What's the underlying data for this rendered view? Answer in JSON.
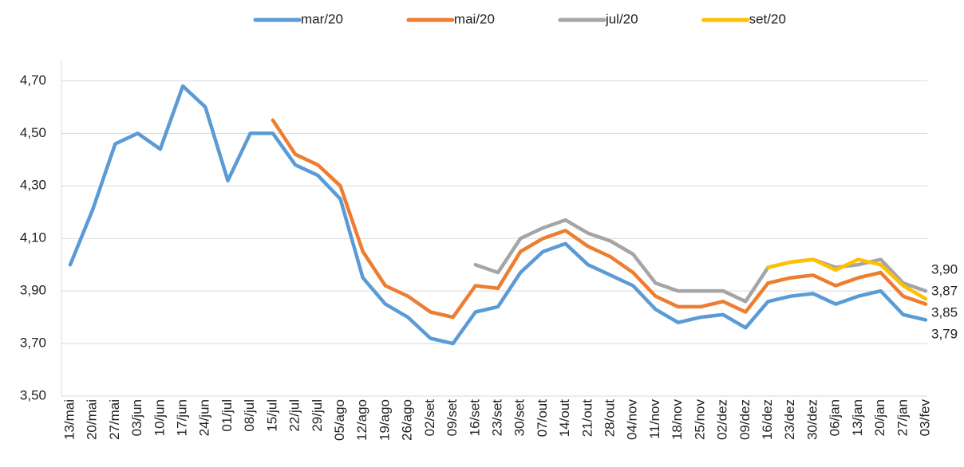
{
  "chart_data": {
    "type": "line",
    "categories": [
      "13/mai",
      "20/mai",
      "27/mai",
      "03/jun",
      "10/jun",
      "17/jun",
      "24/jun",
      "01/jul",
      "08/jul",
      "15/jul",
      "22/jul",
      "29/jul",
      "05/ago",
      "12/ago",
      "19/ago",
      "26/ago",
      "02/set",
      "09/set",
      "16/set",
      "23/set",
      "30/set",
      "07/out",
      "14/out",
      "21/out",
      "28/out",
      "04/nov",
      "11/nov",
      "18/nov",
      "25/nov",
      "02/dez",
      "09/dez",
      "16/dez",
      "23/dez",
      "30/dez",
      "06/jan",
      "13/jan",
      "20/jan",
      "27/jan",
      "03/fev"
    ],
    "series": [
      {
        "name": "mar/20",
        "color": "#5b9bd5",
        "values": [
          4.0,
          4.21,
          4.46,
          4.5,
          4.44,
          4.68,
          4.6,
          4.32,
          4.5,
          4.5,
          4.38,
          4.34,
          4.25,
          3.95,
          3.85,
          3.8,
          3.72,
          3.7,
          3.82,
          3.84,
          3.97,
          4.05,
          4.08,
          4.0,
          3.96,
          3.92,
          3.83,
          3.78,
          3.8,
          3.81,
          3.76,
          3.86,
          3.88,
          3.89,
          3.85,
          3.88,
          3.9,
          3.81,
          3.79
        ],
        "value_labels": [
          null,
          null,
          null,
          null,
          null,
          null,
          null,
          null,
          null,
          null,
          null,
          null,
          null,
          null,
          null,
          null,
          null,
          null,
          null,
          null,
          null,
          null,
          null,
          null,
          null,
          null,
          null,
          null,
          null,
          null,
          null,
          null,
          null,
          null,
          null,
          null,
          null,
          null,
          "3,79"
        ]
      },
      {
        "name": "mai/20",
        "color": "#ed7d31",
        "values": [
          null,
          null,
          null,
          null,
          null,
          null,
          null,
          null,
          null,
          4.55,
          4.42,
          4.38,
          4.3,
          4.05,
          3.92,
          3.88,
          3.82,
          3.8,
          3.92,
          3.91,
          4.05,
          4.1,
          4.13,
          4.07,
          4.03,
          3.97,
          3.88,
          3.84,
          3.84,
          3.86,
          3.82,
          3.93,
          3.95,
          3.96,
          3.92,
          3.95,
          3.97,
          3.88,
          3.85
        ],
        "value_labels": [
          null,
          null,
          null,
          null,
          null,
          null,
          null,
          null,
          null,
          null,
          null,
          null,
          null,
          null,
          null,
          null,
          null,
          null,
          null,
          null,
          null,
          null,
          null,
          null,
          null,
          null,
          null,
          null,
          null,
          null,
          null,
          null,
          null,
          null,
          null,
          null,
          null,
          null,
          "3,85"
        ]
      },
      {
        "name": "jul/20",
        "color": "#a5a5a5",
        "values": [
          null,
          null,
          null,
          null,
          null,
          null,
          null,
          null,
          null,
          null,
          null,
          null,
          null,
          null,
          null,
          null,
          null,
          null,
          4.0,
          3.97,
          4.1,
          4.14,
          4.17,
          4.12,
          4.09,
          4.04,
          3.93,
          3.9,
          3.9,
          3.9,
          3.86,
          3.99,
          4.01,
          4.02,
          3.99,
          4.0,
          4.02,
          3.93,
          3.9
        ],
        "value_labels": [
          null,
          null,
          null,
          null,
          null,
          null,
          null,
          null,
          null,
          null,
          null,
          null,
          null,
          null,
          null,
          null,
          null,
          null,
          null,
          null,
          null,
          null,
          null,
          null,
          null,
          null,
          null,
          null,
          null,
          null,
          null,
          null,
          null,
          null,
          null,
          null,
          null,
          null,
          "3,90"
        ]
      },
      {
        "name": "set/20",
        "color": "#ffc000",
        "values": [
          null,
          null,
          null,
          null,
          null,
          null,
          null,
          null,
          null,
          null,
          null,
          null,
          null,
          null,
          null,
          null,
          null,
          null,
          null,
          null,
          null,
          null,
          null,
          null,
          null,
          null,
          null,
          null,
          null,
          null,
          null,
          3.99,
          4.01,
          4.02,
          3.98,
          4.02,
          4.0,
          3.92,
          3.87
        ],
        "value_labels": [
          null,
          null,
          null,
          null,
          null,
          null,
          null,
          null,
          null,
          null,
          null,
          null,
          null,
          null,
          null,
          null,
          null,
          null,
          null,
          null,
          null,
          null,
          null,
          null,
          null,
          null,
          null,
          null,
          null,
          null,
          null,
          null,
          null,
          null,
          null,
          null,
          null,
          null,
          "3,87"
        ]
      }
    ],
    "ylim": [
      3.5,
      4.78
    ],
    "yticks": [
      {
        "value": 3.5,
        "label": "3,50"
      },
      {
        "value": 3.7,
        "label": "3,70"
      },
      {
        "value": 3.9,
        "label": "3,90"
      },
      {
        "value": 4.1,
        "label": "4,10"
      },
      {
        "value": 4.3,
        "label": "4,30"
      },
      {
        "value": 4.5,
        "label": "4,50"
      },
      {
        "value": 4.7,
        "label": "4,70"
      }
    ],
    "grid": true
  }
}
